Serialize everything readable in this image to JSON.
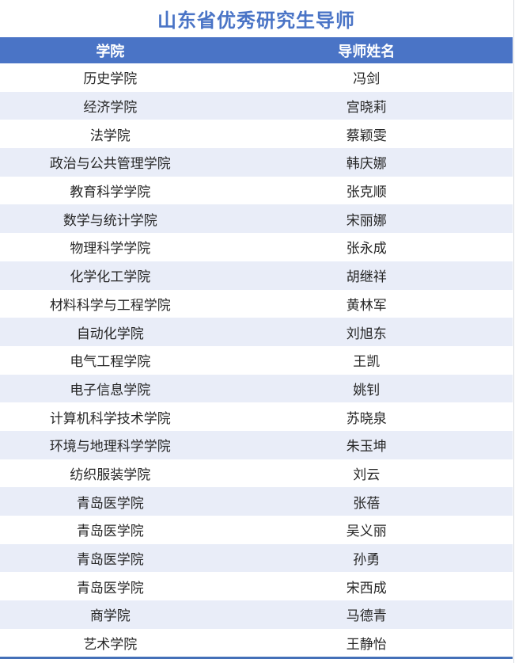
{
  "page": {
    "title": "山东省优秀研究生导师"
  },
  "table": {
    "columns": [
      {
        "label": "学院"
      },
      {
        "label": "导师姓名"
      }
    ],
    "rows": [
      {
        "college": "历史学院",
        "supervisor": "冯剑"
      },
      {
        "college": "经济学院",
        "supervisor": "宫晓莉"
      },
      {
        "college": "法学院",
        "supervisor": "蔡颖雯"
      },
      {
        "college": "政治与公共管理学院",
        "supervisor": "韩庆娜"
      },
      {
        "college": "教育科学学院",
        "supervisor": "张克顺"
      },
      {
        "college": "数学与统计学院",
        "supervisor": "宋丽娜"
      },
      {
        "college": "物理科学学院",
        "supervisor": "张永成"
      },
      {
        "college": "化学化工学院",
        "supervisor": "胡继祥"
      },
      {
        "college": "材料科学与工程学院",
        "supervisor": "黄林军"
      },
      {
        "college": "自动化学院",
        "supervisor": "刘旭东"
      },
      {
        "college": "电气工程学院",
        "supervisor": "王凯"
      },
      {
        "college": "电子信息学院",
        "supervisor": "姚钊"
      },
      {
        "college": "计算机科学技术学院",
        "supervisor": "苏晓泉"
      },
      {
        "college": "环境与地理科学学院",
        "supervisor": "朱玉坤"
      },
      {
        "college": "纺织服装学院",
        "supervisor": "刘云"
      },
      {
        "college": "青岛医学院",
        "supervisor": "张蓓"
      },
      {
        "college": "青岛医学院",
        "supervisor": "吴义丽"
      },
      {
        "college": "青岛医学院",
        "supervisor": "孙勇"
      },
      {
        "college": "青岛医学院",
        "supervisor": "宋西成"
      },
      {
        "college": "商学院",
        "supervisor": "马德青"
      },
      {
        "college": "艺术学院",
        "supervisor": "王静怡"
      }
    ]
  },
  "colors": {
    "accent_blue": "#4A74C6",
    "header_text": "#FFFFFF",
    "banded_row": "#E9EDF8",
    "body_text": "#262626",
    "bottom_rule": "#4470B8"
  }
}
